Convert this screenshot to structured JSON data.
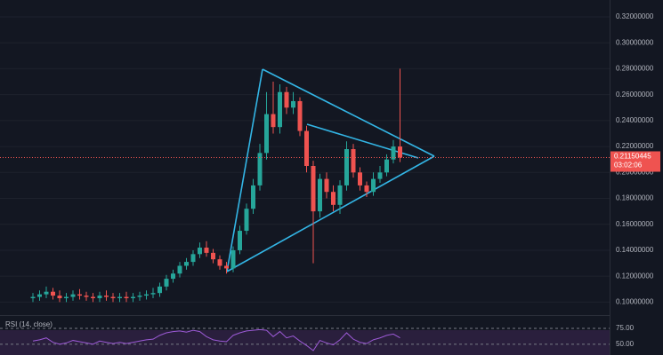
{
  "chart_data": {
    "type": "candlestick",
    "open": [
      0.103,
      0.104,
      0.106,
      0.108,
      0.105,
      0.103,
      0.104,
      0.106,
      0.105,
      0.104,
      0.103,
      0.105,
      0.104,
      0.103,
      0.104,
      0.103,
      0.104,
      0.105,
      0.106,
      0.107,
      0.112,
      0.118,
      0.122,
      0.128,
      0.131,
      0.137,
      0.142,
      0.138,
      0.133,
      0.128,
      0.126,
      0.14,
      0.155,
      0.172,
      0.19,
      0.215,
      0.245,
      0.235,
      0.262,
      0.25,
      0.255,
      0.232,
      0.205,
      0.17,
      0.195,
      0.185,
      0.175,
      0.19,
      0.218,
      0.2,
      0.19,
      0.185,
      0.195,
      0.2,
      0.21,
      0.22
    ],
    "high": [
      0.107,
      0.109,
      0.112,
      0.111,
      0.109,
      0.107,
      0.109,
      0.11,
      0.108,
      0.107,
      0.108,
      0.109,
      0.107,
      0.107,
      0.108,
      0.107,
      0.108,
      0.109,
      0.111,
      0.115,
      0.121,
      0.125,
      0.131,
      0.134,
      0.14,
      0.146,
      0.147,
      0.141,
      0.136,
      0.131,
      0.143,
      0.159,
      0.176,
      0.195,
      0.222,
      0.262,
      0.27,
      0.268,
      0.266,
      0.262,
      0.258,
      0.236,
      0.209,
      0.199,
      0.2,
      0.19,
      0.194,
      0.224,
      0.222,
      0.204,
      0.193,
      0.2,
      0.205,
      0.214,
      0.225,
      0.28
    ],
    "low": [
      0.1,
      0.101,
      0.103,
      0.102,
      0.1,
      0.1,
      0.101,
      0.102,
      0.101,
      0.1,
      0.1,
      0.101,
      0.1,
      0.1,
      0.1,
      0.1,
      0.101,
      0.102,
      0.103,
      0.104,
      0.109,
      0.115,
      0.119,
      0.125,
      0.128,
      0.134,
      0.135,
      0.13,
      0.125,
      0.122,
      0.123,
      0.137,
      0.152,
      0.168,
      0.186,
      0.21,
      0.23,
      0.23,
      0.245,
      0.245,
      0.228,
      0.2,
      0.13,
      0.165,
      0.18,
      0.17,
      0.168,
      0.186,
      0.196,
      0.186,
      0.181,
      0.182,
      0.192,
      0.197,
      0.207,
      0.208
    ],
    "close": [
      0.104,
      0.106,
      0.108,
      0.105,
      0.103,
      0.104,
      0.106,
      0.105,
      0.104,
      0.103,
      0.105,
      0.104,
      0.103,
      0.104,
      0.103,
      0.104,
      0.105,
      0.106,
      0.107,
      0.112,
      0.118,
      0.122,
      0.128,
      0.131,
      0.137,
      0.142,
      0.138,
      0.133,
      0.128,
      0.126,
      0.14,
      0.155,
      0.172,
      0.19,
      0.215,
      0.245,
      0.235,
      0.262,
      0.25,
      0.255,
      0.232,
      0.205,
      0.17,
      0.195,
      0.185,
      0.175,
      0.19,
      0.218,
      0.2,
      0.19,
      0.185,
      0.195,
      0.2,
      0.21,
      0.22,
      0.2115
    ],
    "up_color": "#26a69a",
    "down_color": "#ef5350",
    "ylim": [
      0.09,
      0.333
    ],
    "yticks": [
      {
        "value": 0.32,
        "label": "0.32000000"
      },
      {
        "value": 0.3,
        "label": "0.30000000"
      },
      {
        "value": 0.28,
        "label": "0.28000000"
      },
      {
        "value": 0.26,
        "label": "0.26000000"
      },
      {
        "value": 0.24,
        "label": "0.24000000"
      },
      {
        "value": 0.22,
        "label": "0.22000000"
      },
      {
        "value": 0.2,
        "label": "0.20000000"
      },
      {
        "value": 0.18,
        "label": "0.18000000"
      },
      {
        "value": 0.16,
        "label": "0.16000000"
      },
      {
        "value": 0.14,
        "label": "0.14000000"
      },
      {
        "value": 0.12,
        "label": "0.12000000"
      },
      {
        "value": 0.1,
        "label": "0.10000000"
      }
    ],
    "last_price_label": "0.21150445",
    "countdown": "03:02:06",
    "rsi": {
      "name": "RSI (14, close)",
      "color": "#9c5ad6",
      "values": [
        55,
        57,
        60,
        53,
        50,
        52,
        56,
        54,
        52,
        50,
        55,
        53,
        51,
        53,
        51,
        53,
        55,
        57,
        58,
        64,
        68,
        70,
        71,
        69,
        72,
        70,
        62,
        57,
        55,
        54,
        64,
        68,
        71,
        72,
        73,
        72,
        62,
        70,
        60,
        63,
        55,
        48,
        40,
        56,
        52,
        49,
        57,
        68,
        58,
        53,
        51,
        57,
        60,
        64,
        66,
        60
      ],
      "ylim": [
        33,
        96
      ],
      "yticks": [
        {
          "value": 75,
          "label": "75.00"
        },
        {
          "value": 50,
          "label": "50.00"
        }
      ]
    }
  }
}
